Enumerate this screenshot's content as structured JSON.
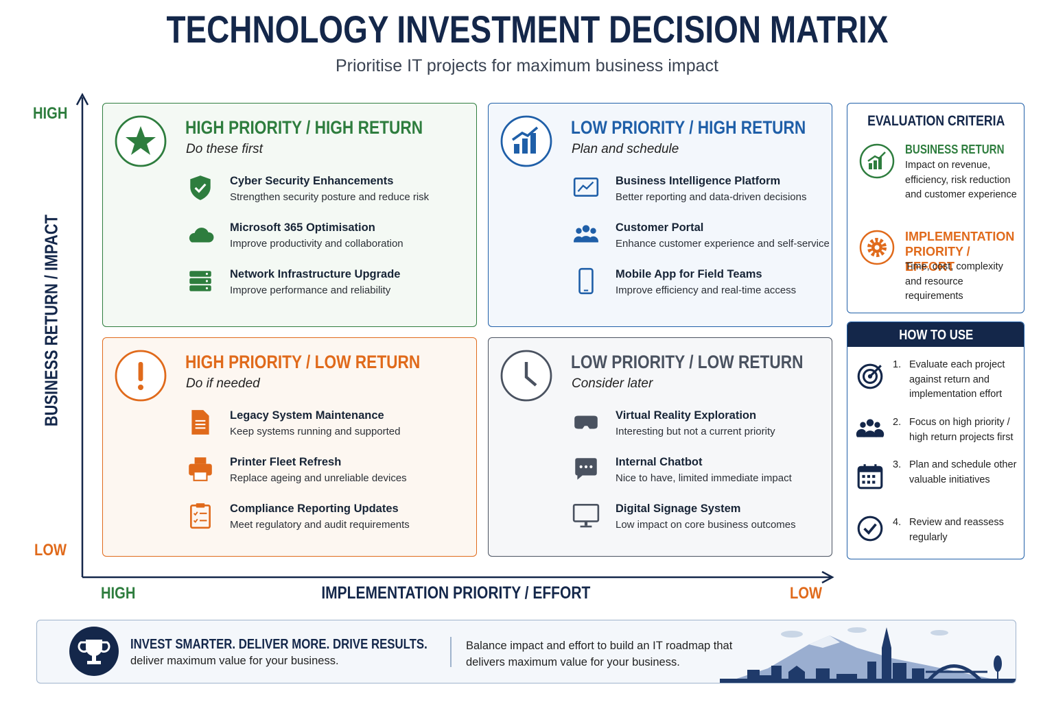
{
  "header": {
    "title": "TECHNOLOGY INVESTMENT DECISION MATRIX",
    "subtitle": "Prioritise IT projects for maximum business impact"
  },
  "axes": {
    "y_high": "HIGH",
    "y_low": "LOW",
    "y_label": "BUSINESS RETURN / IMPACT",
    "x_high": "HIGH",
    "x_low": "LOW",
    "x_label": "IMPLEMENTATION PRIORITY / EFFORT"
  },
  "quadrants": [
    {
      "title": "HIGH PRIORITY / HIGH RETURN",
      "subtitle": "Do these first",
      "items": [
        {
          "title": "Cyber Security Enhancements",
          "description": "Strengthen security posture and reduce risk"
        },
        {
          "title": "Microsoft 365 Optimisation",
          "description": "Improve productivity and collaboration"
        },
        {
          "title": "Network Infrastructure Upgrade",
          "description": "Improve performance and reliability"
        }
      ]
    },
    {
      "title": "LOW PRIORITY / HIGH RETURN",
      "subtitle": "Plan and schedule",
      "items": [
        {
          "title": "Business Intelligence Platform",
          "description": "Better reporting and data-driven decisions"
        },
        {
          "title": "Customer Portal",
          "description": "Enhance customer experience and self-service"
        },
        {
          "title": "Mobile App for Field Teams",
          "description": "Improve efficiency and real-time access"
        }
      ]
    },
    {
      "title": "HIGH PRIORITY / LOW RETURN",
      "subtitle": "Do if needed",
      "items": [
        {
          "title": "Legacy System Maintenance",
          "description": "Keep systems running and supported"
        },
        {
          "title": "Printer Fleet Refresh",
          "description": "Replace ageing and unreliable devices"
        },
        {
          "title": "Compliance Reporting Updates",
          "description": "Meet regulatory and audit requirements"
        }
      ]
    },
    {
      "title": "LOW PRIORITY / LOW RETURN",
      "subtitle": "Consider later",
      "items": [
        {
          "title": "Virtual Reality Exploration",
          "description": "Interesting but not a current priority"
        },
        {
          "title": "Internal Chatbot",
          "description": "Nice to have, limited immediate impact"
        },
        {
          "title": "Digital Signage System",
          "description": "Low impact on core business outcomes"
        }
      ]
    }
  ],
  "criteria": {
    "title": "EVALUATION CRITERIA",
    "items": [
      {
        "title": "BUSINESS RETURN",
        "description": "Impact on revenue, efficiency, risk reduction and customer experience"
      },
      {
        "title": "IMPLEMENTATION PRIORITY / EFFORT",
        "description": "Time, cost, complexity and resource requirements"
      }
    ]
  },
  "how_to_use": {
    "title": "HOW TO USE",
    "steps": [
      {
        "number": "1.",
        "text": "Evaluate each project against return and implementation effort"
      },
      {
        "number": "2.",
        "text": "Focus on high priority / high return projects first"
      },
      {
        "number": "3.",
        "text": "Plan and schedule other valuable initiatives"
      },
      {
        "number": "4.",
        "text": "Review and reassess regularly"
      }
    ]
  },
  "footer": {
    "headline": "INVEST SMARTER. DELIVER MORE. DRIVE RESULTS.",
    "tagline": "deliver maximum value for your business.",
    "message": "Balance impact and effort to build an IT roadmap that delivers maximum value for your business."
  }
}
